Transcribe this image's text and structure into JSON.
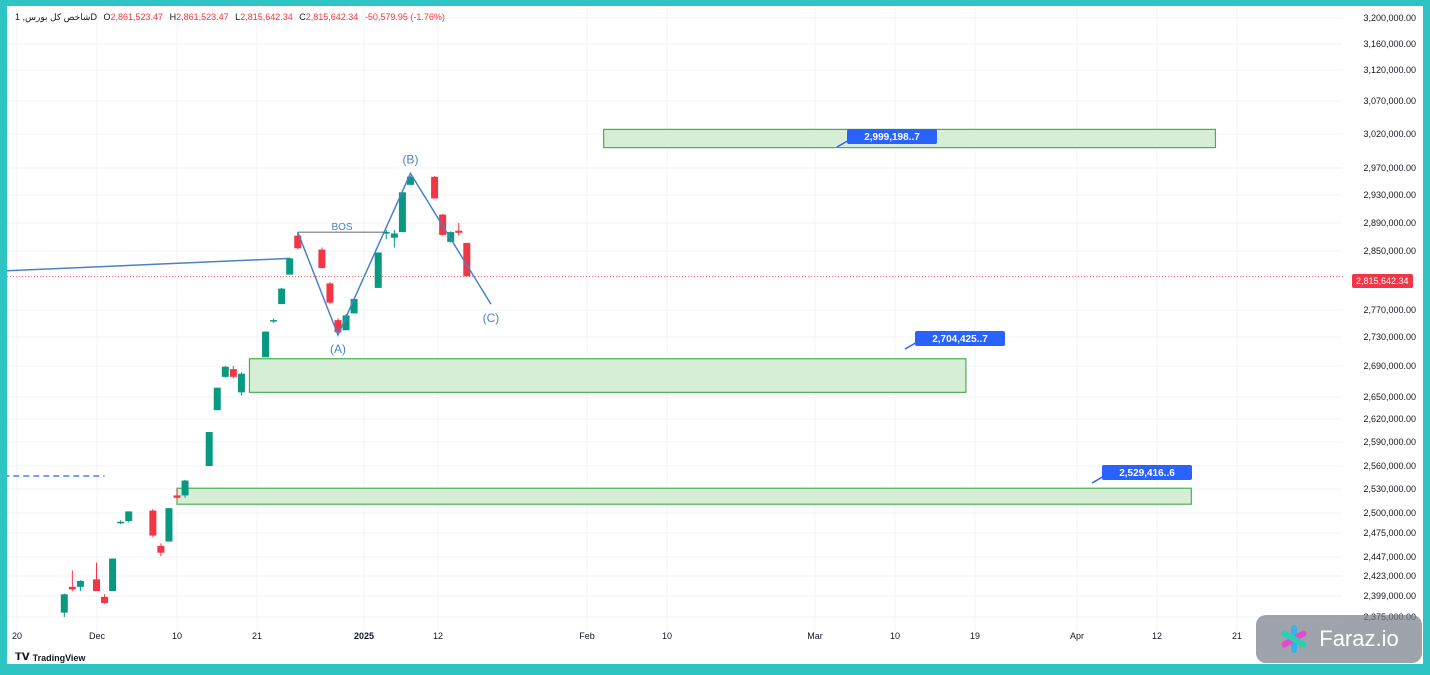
{
  "legend": {
    "symbol": "شاخص کل بورس, 1D",
    "o_label": "O",
    "o": "2,861,523.47",
    "h_label": "H",
    "h": "2,861,523.47",
    "l_label": "L",
    "l": "2,815,642.34",
    "c_label": "C",
    "c": "2,815,642.34",
    "change": "-50,579.95 (-1.76%)"
  },
  "branding": {
    "tradingview": "TradingView",
    "watermark": "Faraz.io"
  },
  "colors": {
    "up": "#089981",
    "down": "#f23645",
    "zone_fill": "#d6eed6",
    "zone_border": "#4caf50",
    "label_bg": "#2962ff",
    "wave_line": "#4a82c7"
  },
  "chart_data": {
    "type": "candlestick",
    "y_axis": {
      "ticks": [
        "3,200,000.00",
        "3,160,000.00",
        "3,120,000.00",
        "3,070,000.00",
        "3,020,000.00",
        "2,970,000.00",
        "2,930,000.00",
        "2,890,000.00",
        "2,850,000.00",
        "2,770,000.00",
        "2,730,000.00",
        "2,690,000.00",
        "2,650,000.00",
        "2,620,000.00",
        "2,590,000.00",
        "2,560,000.00",
        "2,530,000.00",
        "2,500,000.00",
        "2,475,000.00",
        "2,447,000.00",
        "2,423,000.00",
        "2,399,000.00",
        "2,375,000.00"
      ]
    },
    "x_axis": {
      "ticks": [
        "20",
        "Dec",
        "10",
        "21",
        "2025",
        "12",
        "Feb",
        "10",
        "Mar",
        "10",
        "19",
        "Apr",
        "12",
        "21"
      ]
    },
    "candles": [
      {
        "date": "2024-11-26",
        "o": 2380000,
        "h": 2402000,
        "l": 2375000,
        "c": 2401000
      },
      {
        "date": "2024-11-27",
        "o": 2410000,
        "h": 2430000,
        "l": 2405000,
        "c": 2407000
      },
      {
        "date": "2024-11-28",
        "o": 2410000,
        "h": 2418000,
        "l": 2405000,
        "c": 2417000
      },
      {
        "date": "2024-11-30",
        "o": 2419000,
        "h": 2440000,
        "l": 2405000,
        "c": 2405000
      },
      {
        "date": "2024-12-01",
        "o": 2398000,
        "h": 2401000,
        "l": 2390000,
        "c": 2391000
      },
      {
        "date": "2024-12-02",
        "o": 2405000,
        "h": 2445000,
        "l": 2405000,
        "c": 2445000
      },
      {
        "date": "2024-12-03",
        "o": 2489000,
        "h": 2491000,
        "l": 2486000,
        "c": 2489000
      },
      {
        "date": "2024-12-04",
        "o": 2490000,
        "h": 2502000,
        "l": 2488000,
        "c": 2502000
      },
      {
        "date": "2024-12-07",
        "o": 2503000,
        "h": 2505000,
        "l": 2470000,
        "c": 2472000
      },
      {
        "date": "2024-12-08",
        "o": 2460000,
        "h": 2463000,
        "l": 2448000,
        "c": 2452000
      },
      {
        "date": "2024-12-09",
        "o": 2465000,
        "h": 2506000,
        "l": 2465000,
        "c": 2506000
      },
      {
        "date": "2024-12-10",
        "o": 2522000,
        "h": 2530000,
        "l": 2517000,
        "c": 2519000
      },
      {
        "date": "2024-12-11",
        "o": 2522000,
        "h": 2542000,
        "l": 2519000,
        "c": 2541000
      },
      {
        "date": "2024-12-14",
        "o": 2560000,
        "h": 2603000,
        "l": 2560000,
        "c": 2603000
      },
      {
        "date": "2024-12-15",
        "o": 2632000,
        "h": 2662000,
        "l": 2632000,
        "c": 2662000
      },
      {
        "date": "2024-12-16",
        "o": 2676000,
        "h": 2690000,
        "l": 2675000,
        "c": 2689000
      },
      {
        "date": "2024-12-17",
        "o": 2686000,
        "h": 2690000,
        "l": 2674000,
        "c": 2676000
      },
      {
        "date": "2024-12-18",
        "o": 2656000,
        "h": 2682000,
        "l": 2652000,
        "c": 2680000
      },
      {
        "date": "2024-12-21",
        "o": 2702000,
        "h": 2738000,
        "l": 2702000,
        "c": 2738000
      },
      {
        "date": "2024-12-22",
        "o": 2753000,
        "h": 2757000,
        "l": 2751000,
        "c": 2755000
      },
      {
        "date": "2024-12-23",
        "o": 2778000,
        "h": 2800000,
        "l": 2778000,
        "c": 2799000
      },
      {
        "date": "2024-12-24",
        "o": 2818000,
        "h": 2841000,
        "l": 2818000,
        "c": 2840000
      },
      {
        "date": "2024-12-25",
        "o": 2872000,
        "h": 2877000,
        "l": 2852000,
        "c": 2854000
      },
      {
        "date": "2024-12-28",
        "o": 2852000,
        "h": 2855000,
        "l": 2826000,
        "c": 2827000
      },
      {
        "date": "2024-12-29",
        "o": 2806000,
        "h": 2808000,
        "l": 2778000,
        "c": 2780000
      },
      {
        "date": "2024-12-30",
        "o": 2755000,
        "h": 2758000,
        "l": 2733000,
        "c": 2737000
      },
      {
        "date": "2024-12-31",
        "o": 2740000,
        "h": 2764000,
        "l": 2740000,
        "c": 2762000
      },
      {
        "date": "2025-01-01",
        "o": 2765000,
        "h": 2786000,
        "l": 2765000,
        "c": 2785000
      },
      {
        "date": "2025-01-04",
        "o": 2800000,
        "h": 2848000,
        "l": 2800000,
        "c": 2848000
      },
      {
        "date": "2025-01-05",
        "o": 2877000,
        "h": 2880000,
        "l": 2867000,
        "c": 2877000
      },
      {
        "date": "2025-01-06",
        "o": 2869000,
        "h": 2880000,
        "l": 2855000,
        "c": 2875000
      },
      {
        "date": "2025-01-07",
        "o": 2877000,
        "h": 2934000,
        "l": 2877000,
        "c": 2934000
      },
      {
        "date": "2025-01-08",
        "o": 2945000,
        "h": 2958000,
        "l": 2945000,
        "c": 2957000
      },
      {
        "date": "2025-01-11",
        "o": 2957000,
        "h": 2958000,
        "l": 2925000,
        "c": 2925000
      },
      {
        "date": "2025-01-12",
        "o": 2902000,
        "h": 2903000,
        "l": 2872000,
        "c": 2873000
      },
      {
        "date": "2025-01-13",
        "o": 2863000,
        "h": 2878000,
        "l": 2862000,
        "c": 2877000
      },
      {
        "date": "2025-01-14",
        "o": 2879000,
        "h": 2890000,
        "l": 2872000,
        "c": 2876000
      },
      {
        "date": "2025-01-15",
        "o": 2861523,
        "h": 2861523,
        "l": 2815642,
        "c": 2815642
      }
    ],
    "current_price": "2,815,642.34",
    "zones": [
      {
        "label": "2,999,198..7",
        "from": "2025-02-01",
        "to": "2025-04-18",
        "top": 3027000,
        "bottom": 3000000
      },
      {
        "label": "2,704,425..7",
        "from": "2024-12-19",
        "to": "2025-03-18",
        "top": 2700000,
        "bottom": 2656000
      },
      {
        "label": "2,529,416..6",
        "from": "2024-12-10",
        "to": "2025-04-15",
        "top": 2531000,
        "bottom": 2511000
      }
    ],
    "wave": {
      "points": [
        {
          "label": "(A)",
          "date": "2024-12-30",
          "value": 2733000
        },
        {
          "label": "(B)",
          "date": "2025-01-08",
          "value": 2962000
        },
        {
          "label": "(C)",
          "date": "2025-01-18",
          "value": 2778000
        }
      ]
    },
    "bos": {
      "label": "BOS",
      "from": "2024-12-25",
      "to": "2025-01-05",
      "value": 2877000
    },
    "trendline": {
      "from": "2024-11-06",
      "from_value": 2817000,
      "to": "2024-12-24",
      "to_value": 2840000
    },
    "dashed_level": {
      "from": "2024-11-06",
      "to": "2024-12-01",
      "value": 2547000
    }
  }
}
